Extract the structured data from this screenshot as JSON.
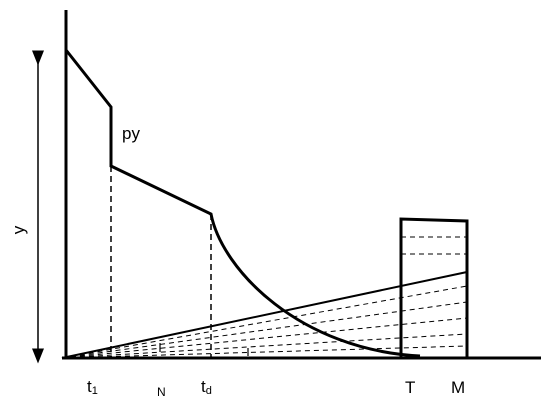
{
  "labels": {
    "py": "py",
    "y": "y",
    "t1": {
      "main": "t",
      "sub": "1"
    },
    "N": "N",
    "td": {
      "main": "t",
      "sub": "d"
    },
    "T": "T",
    "M": "M"
  }
}
